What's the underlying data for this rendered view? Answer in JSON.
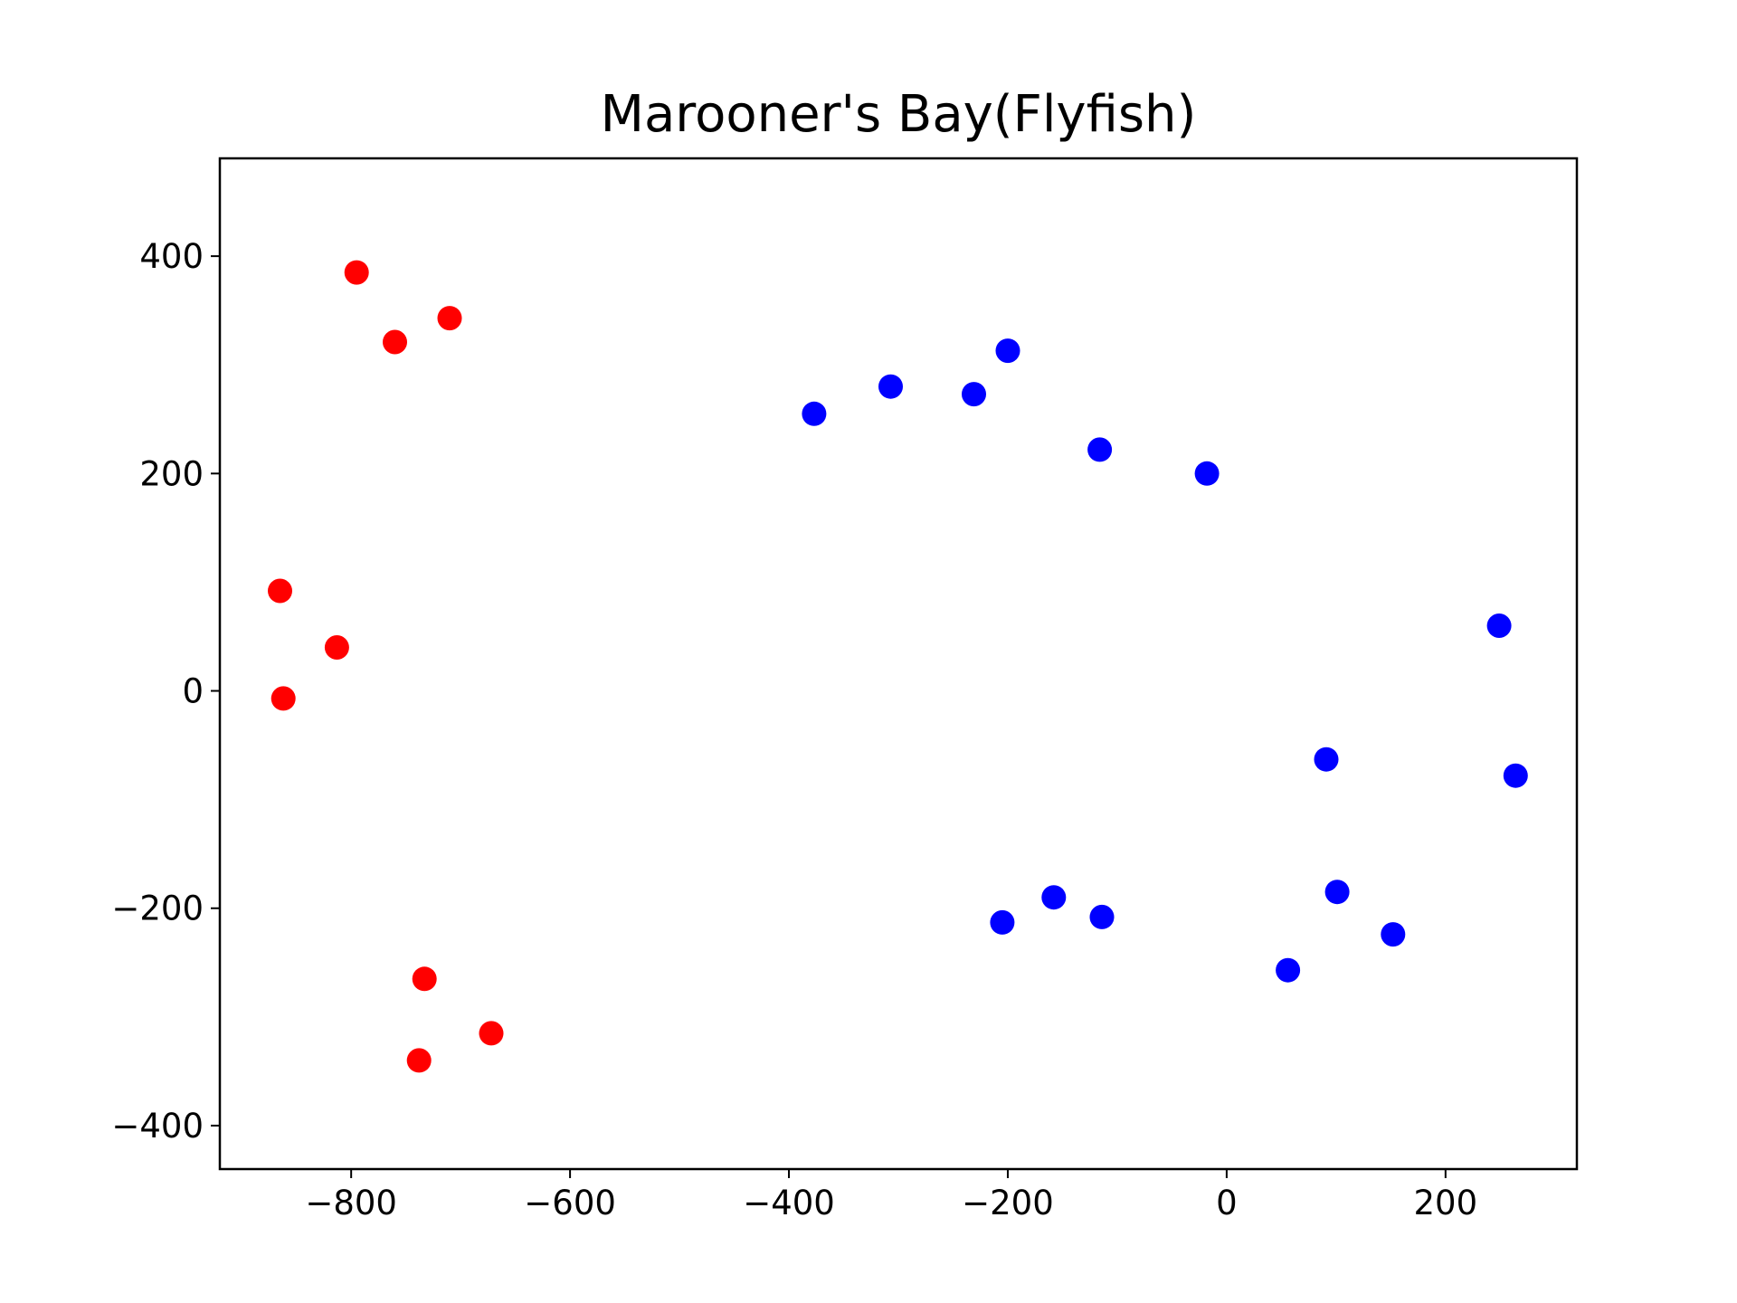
{
  "chart_data": {
    "type": "scatter",
    "title": "Marooner's Bay(Flyfish)",
    "xlabel": "",
    "ylabel": "",
    "xlim": [
      -920,
      320
    ],
    "ylim": [
      -440,
      490
    ],
    "grid": false,
    "legend": "none",
    "x_ticks": [
      {
        "value": -800,
        "label": "−800"
      },
      {
        "value": -600,
        "label": "−600"
      },
      {
        "value": -400,
        "label": "−400"
      },
      {
        "value": -200,
        "label": "−200"
      },
      {
        "value": 0,
        "label": "0"
      },
      {
        "value": 200,
        "label": "200"
      }
    ],
    "y_ticks": [
      {
        "value": -400,
        "label": "−400"
      },
      {
        "value": -200,
        "label": "−200"
      },
      {
        "value": 0,
        "label": "0"
      },
      {
        "value": 200,
        "label": "200"
      },
      {
        "value": 400,
        "label": "400"
      }
    ],
    "series": [
      {
        "color": "#ff0000",
        "points": [
          [
            -795,
            385
          ],
          [
            -760,
            321
          ],
          [
            -710,
            343
          ],
          [
            -865,
            92
          ],
          [
            -813,
            40
          ],
          [
            -862,
            -7
          ],
          [
            -733,
            -265
          ],
          [
            -738,
            -340
          ],
          [
            -672,
            -315
          ]
        ]
      },
      {
        "color": "#0000ff",
        "points": [
          [
            -377,
            255
          ],
          [
            -307,
            280
          ],
          [
            -231,
            273
          ],
          [
            -200,
            313
          ],
          [
            -116,
            222
          ],
          [
            -18,
            200
          ],
          [
            249,
            60
          ],
          [
            91,
            -63
          ],
          [
            264,
            -78
          ],
          [
            -205,
            -213
          ],
          [
            -158,
            -190
          ],
          [
            -114,
            -208
          ],
          [
            101,
            -185
          ],
          [
            56,
            -257
          ],
          [
            152,
            -224
          ]
        ]
      }
    ]
  }
}
